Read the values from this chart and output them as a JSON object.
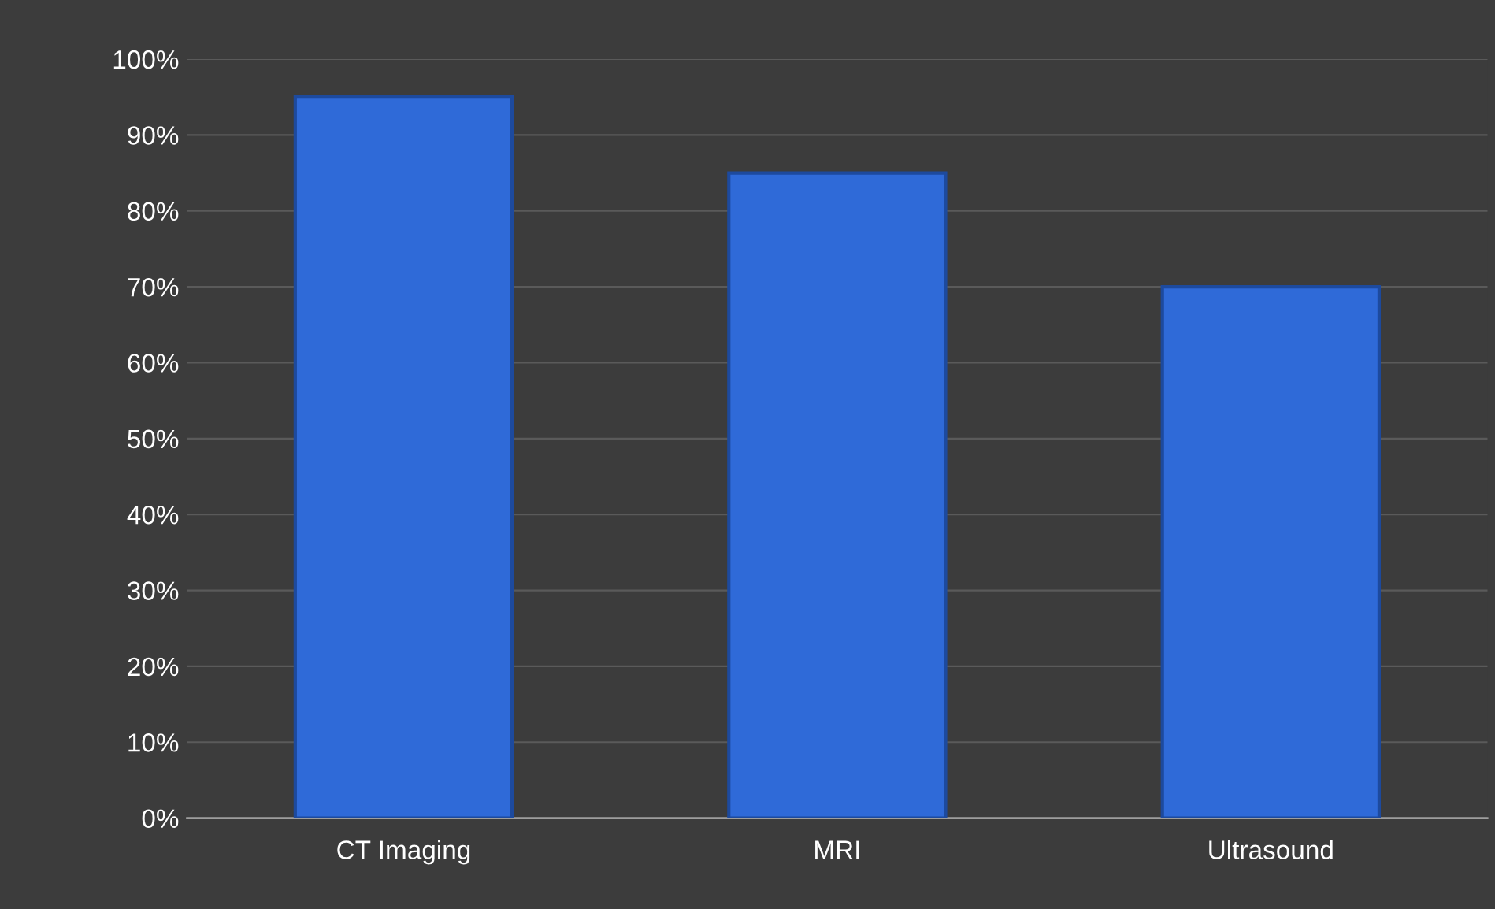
{
  "chart_data": {
    "type": "bar",
    "categories": [
      "CT Imaging",
      "MRI",
      "Ultrasound"
    ],
    "values": [
      95,
      85,
      70
    ],
    "color": "#2f6ad8",
    "ylim": [
      0,
      100
    ],
    "yticks": [
      {
        "value": 0,
        "label": "0%"
      },
      {
        "value": 10,
        "label": "10%"
      },
      {
        "value": 20,
        "label": "20%"
      },
      {
        "value": 30,
        "label": "30%"
      },
      {
        "value": 40,
        "label": "40%"
      },
      {
        "value": 50,
        "label": "50%"
      },
      {
        "value": 60,
        "label": "60%"
      },
      {
        "value": 70,
        "label": "70%"
      },
      {
        "value": 80,
        "label": "80%"
      },
      {
        "value": 90,
        "label": "90%"
      },
      {
        "value": 100,
        "label": "100%"
      }
    ],
    "grid": "y"
  }
}
